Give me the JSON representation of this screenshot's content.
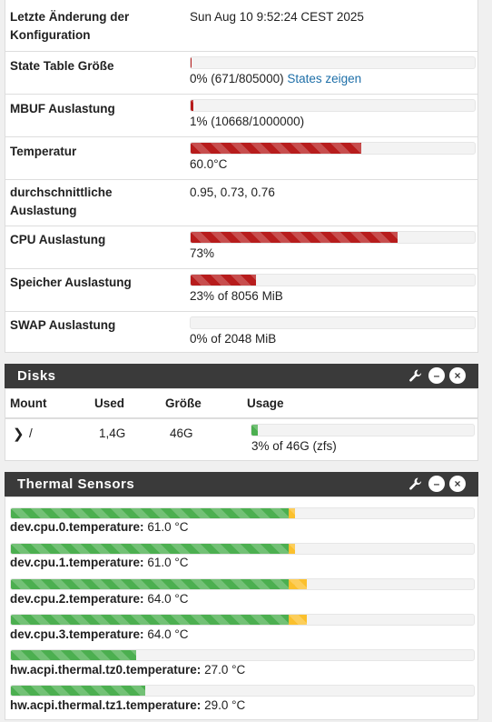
{
  "system": {
    "rows": [
      {
        "label": "Letzte Änderung der Konfiguration",
        "value": "Sun Aug 10 9:52:24 CEST 2025"
      },
      {
        "label": "State Table Größe",
        "value": "0% (671/805000)",
        "link": "States zeigen",
        "percent": 0.08
      },
      {
        "label": "MBUF Auslastung",
        "value": "1% (10668/1000000)",
        "percent": 1
      },
      {
        "label": "Temperatur",
        "value": "60.0°C",
        "percent": 60
      },
      {
        "label": "durchschnittliche Auslastung",
        "value": "0.95, 0.73, 0.76"
      },
      {
        "label": "CPU Auslastung",
        "value": "73%",
        "percent": 73
      },
      {
        "label": "Speicher Auslastung",
        "value": "23% of 8056 MiB",
        "percent": 23
      },
      {
        "label": "SWAP Auslastung",
        "value": "0% of 2048 MiB",
        "percent": 0
      }
    ]
  },
  "disks": {
    "title": "Disks",
    "columns": [
      "Mount",
      "Used",
      "Größe",
      "Usage"
    ],
    "rows": [
      {
        "mount": "/",
        "used": "1,4G",
        "size": "46G",
        "usage": "3% of 46G (zfs)",
        "percent": 3
      }
    ]
  },
  "thermal": {
    "title": "Thermal Sensors",
    "sensors": [
      {
        "name": "dev.cpu.0.temperature:",
        "value": "61.0 °C",
        "green": 60,
        "yellow": 1
      },
      {
        "name": "dev.cpu.1.temperature:",
        "value": "61.0 °C",
        "green": 60,
        "yellow": 1
      },
      {
        "name": "dev.cpu.2.temperature:",
        "value": "64.0 °C",
        "green": 60,
        "yellow": 4
      },
      {
        "name": "dev.cpu.3.temperature:",
        "value": "64.0 °C",
        "green": 60,
        "yellow": 4
      },
      {
        "name": "hw.acpi.thermal.tz0.temperature:",
        "value": "27.0 °C",
        "green": 27,
        "yellow": 0
      },
      {
        "name": "hw.acpi.thermal.tz1.temperature:",
        "value": "29.0 °C",
        "green": 29,
        "yellow": 0
      }
    ]
  },
  "icons": {
    "wrench": "wrench-icon",
    "minimize": "minus-circle-icon",
    "close": "close-circle-icon",
    "chevron": "chevron-right-icon"
  },
  "colors": {
    "bar_red": "#b71c1c",
    "bar_green": "#4caf50",
    "bar_yellow": "#fbc02d",
    "header_bg": "#3a3a3a",
    "link": "#1e6fa8"
  }
}
